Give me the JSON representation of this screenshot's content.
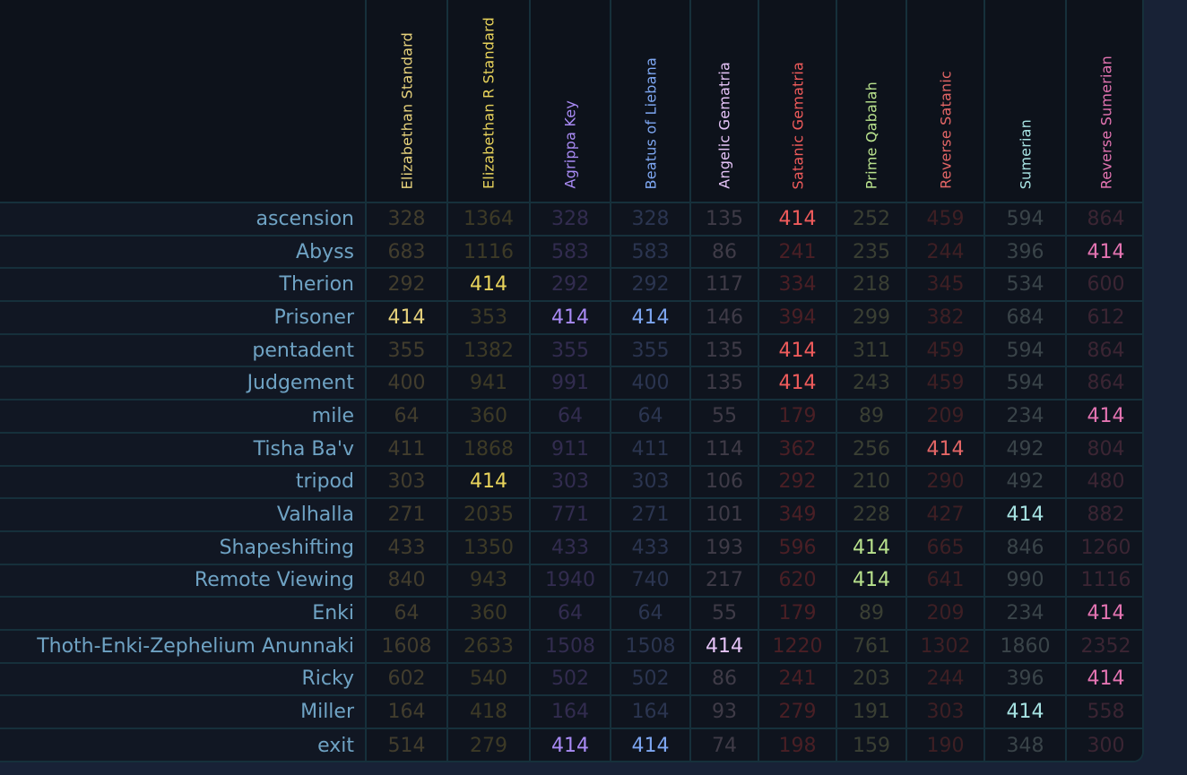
{
  "table": {
    "columns": [
      {
        "label": "Elizabethan Standard",
        "color": "#e7d27c",
        "dim": "#423d2d"
      },
      {
        "label": "Elizabethan R Standard",
        "color": "#e8d35b",
        "dim": "#3d3a26"
      },
      {
        "label": "Agrippa Key",
        "color": "#a98bf5",
        "dim": "#322c4f"
      },
      {
        "label": "Beatus of Liebana",
        "color": "#7ea7f2",
        "dim": "#2b3550"
      },
      {
        "label": "Angelic Gematria",
        "color": "#e5c3f7",
        "dim": "#3f3b47"
      },
      {
        "label": "Satanic Gematria",
        "color": "#ef5b5b",
        "dim": "#4a1f25"
      },
      {
        "label": "Prime Qabalah",
        "color": "#b9e28d",
        "dim": "#3a3f33"
      },
      {
        "label": "Reverse Satanic",
        "color": "#e46666",
        "dim": "#3e1f24"
      },
      {
        "label": "Sumerian",
        "color": "#a7e3e3",
        "dim": "#3a4449"
      },
      {
        "label": "Reverse Sumerian",
        "color": "#e474b2",
        "dim": "#3b2533"
      }
    ],
    "rows": [
      {
        "word": "ascension",
        "values": [
          "328",
          "1364",
          "328",
          "328",
          "135",
          "414",
          "252",
          "459",
          "594",
          "864"
        ]
      },
      {
        "word": "Abyss",
        "values": [
          "683",
          "1116",
          "583",
          "583",
          "86",
          "241",
          "235",
          "244",
          "396",
          "414"
        ]
      },
      {
        "word": "Therion",
        "values": [
          "292",
          "414",
          "292",
          "292",
          "117",
          "334",
          "218",
          "345",
          "534",
          "600"
        ]
      },
      {
        "word": "Prisoner",
        "values": [
          "414",
          "353",
          "414",
          "414",
          "146",
          "394",
          "299",
          "382",
          "684",
          "612"
        ]
      },
      {
        "word": "pentadent",
        "values": [
          "355",
          "1382",
          "355",
          "355",
          "135",
          "414",
          "311",
          "459",
          "594",
          "864"
        ]
      },
      {
        "word": "Judgement",
        "values": [
          "400",
          "941",
          "991",
          "400",
          "135",
          "414",
          "243",
          "459",
          "594",
          "864"
        ]
      },
      {
        "word": "mile",
        "values": [
          "64",
          "360",
          "64",
          "64",
          "55",
          "179",
          "89",
          "209",
          "234",
          "414"
        ]
      },
      {
        "word": "Tisha Ba'v",
        "values": [
          "411",
          "1868",
          "911",
          "411",
          "114",
          "362",
          "256",
          "414",
          "492",
          "804"
        ]
      },
      {
        "word": "tripod",
        "values": [
          "303",
          "414",
          "303",
          "303",
          "106",
          "292",
          "210",
          "290",
          "492",
          "480"
        ]
      },
      {
        "word": "Valhalla",
        "values": [
          "271",
          "2035",
          "771",
          "271",
          "101",
          "349",
          "228",
          "427",
          "414",
          "882"
        ]
      },
      {
        "word": "Shapeshifting",
        "values": [
          "433",
          "1350",
          "433",
          "433",
          "193",
          "596",
          "414",
          "665",
          "846",
          "1260"
        ]
      },
      {
        "word": "Remote Viewing",
        "values": [
          "840",
          "943",
          "1940",
          "740",
          "217",
          "620",
          "414",
          "641",
          "990",
          "1116"
        ]
      },
      {
        "word": "Enki",
        "values": [
          "64",
          "360",
          "64",
          "64",
          "55",
          "179",
          "89",
          "209",
          "234",
          "414"
        ]
      },
      {
        "word": "Thoth-Enki-Zephelium Anunnaki",
        "values": [
          "1608",
          "2633",
          "1508",
          "1508",
          "414",
          "1220",
          "761",
          "1302",
          "1860",
          "2352"
        ]
      },
      {
        "word": "Ricky",
        "values": [
          "602",
          "540",
          "502",
          "502",
          "86",
          "241",
          "203",
          "244",
          "396",
          "414"
        ]
      },
      {
        "word": "Miller",
        "values": [
          "164",
          "418",
          "164",
          "164",
          "93",
          "279",
          "191",
          "303",
          "414",
          "558"
        ]
      },
      {
        "word": "exit",
        "values": [
          "514",
          "279",
          "414",
          "414",
          "74",
          "198",
          "159",
          "190",
          "348",
          "300"
        ]
      }
    ],
    "highlight_value": "414"
  }
}
